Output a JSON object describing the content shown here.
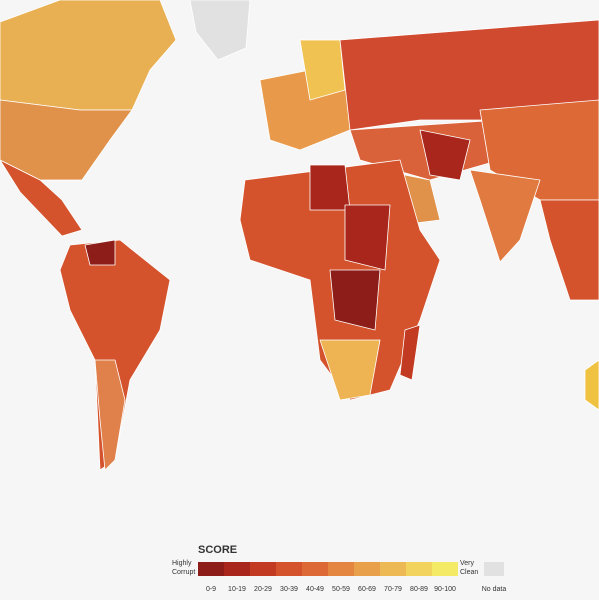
{
  "legend": {
    "title": "SCORE",
    "low_label": [
      "Highly",
      "Corrupt"
    ],
    "high_label": [
      "Very",
      "Clean"
    ],
    "bins": [
      {
        "label": "0-9",
        "color": "#8c1d18"
      },
      {
        "label": "10-19",
        "color": "#a8261b"
      },
      {
        "label": "20-29",
        "color": "#c23a22"
      },
      {
        "label": "30-39",
        "color": "#d4532d"
      },
      {
        "label": "40-49",
        "color": "#dd6a36"
      },
      {
        "label": "50-59",
        "color": "#e48540"
      },
      {
        "label": "60-69",
        "color": "#e9a04a"
      },
      {
        "label": "70-79",
        "color": "#edb954"
      },
      {
        "label": "80-89",
        "color": "#f1d35e"
      },
      {
        "label": "90-100",
        "color": "#f5ea66"
      }
    ],
    "no_data": {
      "label": "No data",
      "color": "#e1e1e1"
    }
  }
}
